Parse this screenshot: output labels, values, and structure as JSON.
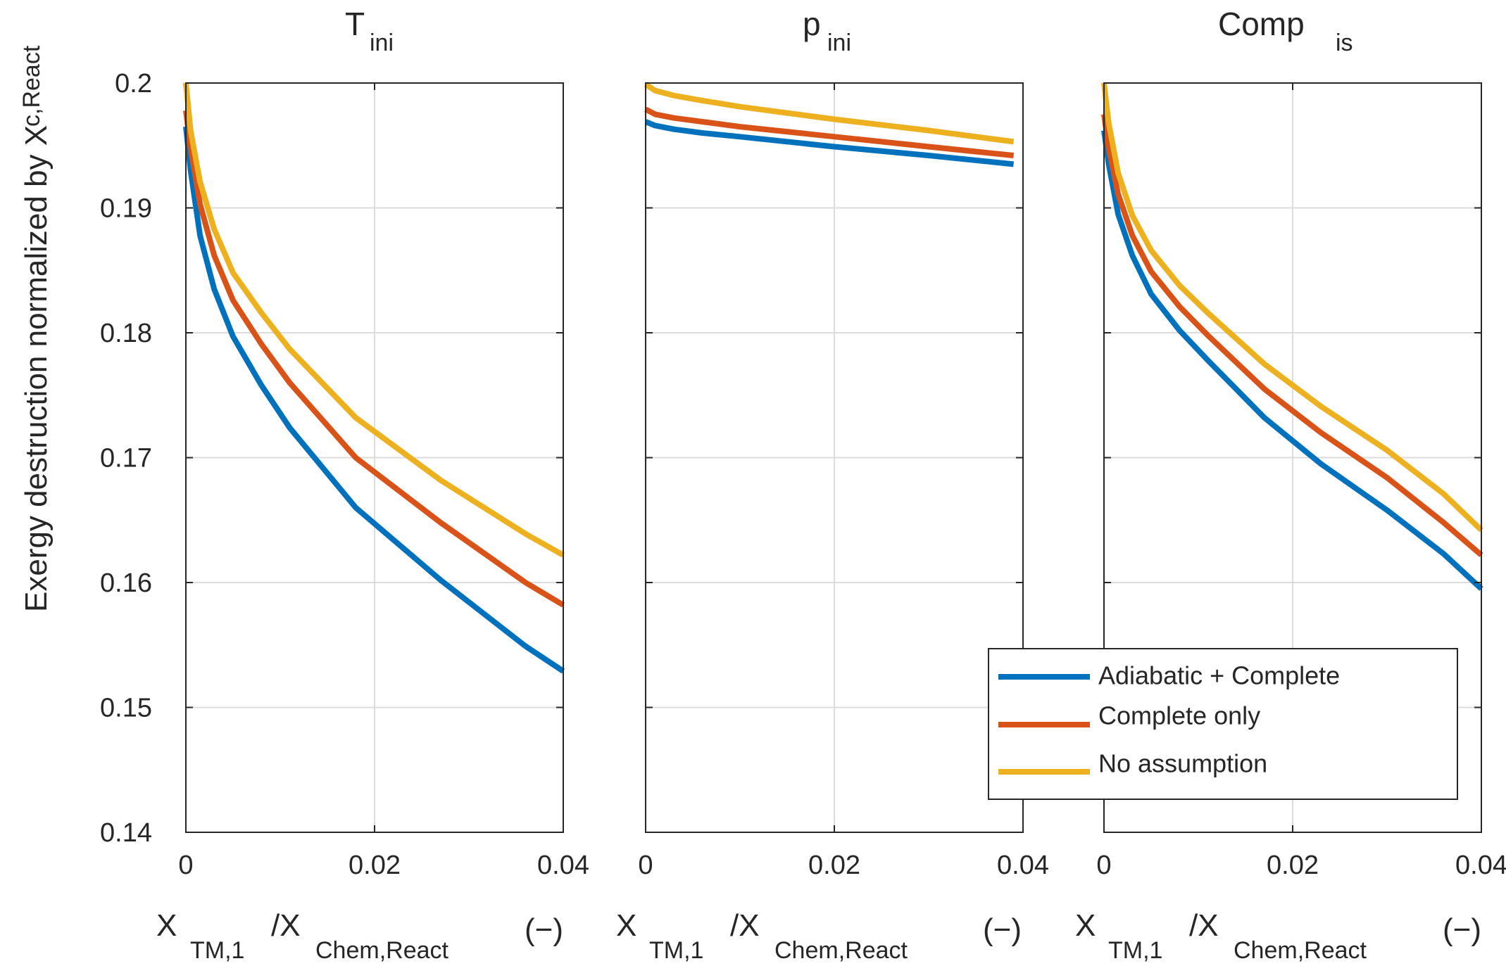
{
  "chart_data": [
    {
      "type": "line",
      "title": "T",
      "title_sub": "ini",
      "ylabel": "Exergy destruction normalized by X",
      "ylabel_sub": "c,React",
      "ylabel_unit": "(−)",
      "xlabel": "X",
      "xlabel_sub1": "TM,1",
      "xlabel_mid": "/X",
      "xlabel_sub2": "Chem,React",
      "xlabel_unit": "(−)",
      "xlim": [
        0,
        0.04
      ],
      "ylim": [
        0.14,
        0.2
      ],
      "xticks": [
        "0",
        "0.02",
        "0.04"
      ],
      "yticks": [
        "0.14",
        "0.15",
        "0.16",
        "0.17",
        "0.18",
        "0.19",
        "0.2"
      ],
      "grid": true,
      "series": [
        {
          "name": "Adiabatic + Complete",
          "color": "#0072BD",
          "x": [
            0,
            0.0005,
            0.0015,
            0.003,
            0.005,
            0.008,
            0.011,
            0.018,
            0.027,
            0.036,
            0.04
          ],
          "y": [
            0.1965,
            0.193,
            0.1878,
            0.1835,
            0.1797,
            0.1758,
            0.1724,
            0.166,
            0.1602,
            0.1549,
            0.1529
          ]
        },
        {
          "name": "Complete only",
          "color": "#D95319",
          "x": [
            0,
            0.0005,
            0.0015,
            0.003,
            0.005,
            0.008,
            0.011,
            0.018,
            0.027,
            0.036,
            0.04
          ],
          "y": [
            0.1978,
            0.1948,
            0.1903,
            0.1862,
            0.1826,
            0.1791,
            0.176,
            0.17,
            0.1648,
            0.16,
            0.1582
          ]
        },
        {
          "name": "No assumption",
          "color": "#EDB120",
          "x": [
            0,
            0.0005,
            0.0015,
            0.003,
            0.005,
            0.008,
            0.011,
            0.018,
            0.027,
            0.036,
            0.04
          ],
          "y": [
            0.2,
            0.1962,
            0.1921,
            0.1883,
            0.1848,
            0.1816,
            0.1787,
            0.1732,
            0.1682,
            0.1639,
            0.1622
          ]
        }
      ]
    },
    {
      "type": "line",
      "title": "p",
      "title_sub": "ini",
      "xlabel": "X",
      "xlabel_sub1": "TM,1",
      "xlabel_mid": "/X",
      "xlabel_sub2": "Chem,React",
      "xlabel_unit": "(−)",
      "xlim": [
        0,
        0.04
      ],
      "ylim": [
        0.14,
        0.2
      ],
      "xticks": [
        "0",
        "0.02",
        "0.04"
      ],
      "grid": true,
      "series": [
        {
          "name": "Adiabatic + Complete",
          "color": "#0072BD",
          "x": [
            0,
            0.001,
            0.003,
            0.006,
            0.01,
            0.02,
            0.03,
            0.039
          ],
          "y": [
            0.1969,
            0.1966,
            0.1963,
            0.196,
            0.1957,
            0.1949,
            0.1942,
            0.1935
          ]
        },
        {
          "name": "Complete only",
          "color": "#D95319",
          "x": [
            0,
            0.001,
            0.003,
            0.006,
            0.01,
            0.02,
            0.03,
            0.039
          ],
          "y": [
            0.1979,
            0.1975,
            0.1972,
            0.1969,
            0.1965,
            0.1957,
            0.1949,
            0.1942
          ]
        },
        {
          "name": "No assumption",
          "color": "#EDB120",
          "x": [
            0,
            0.001,
            0.003,
            0.006,
            0.01,
            0.02,
            0.03,
            0.039
          ],
          "y": [
            0.1999,
            0.1994,
            0.199,
            0.1986,
            0.1981,
            0.1971,
            0.1962,
            0.1953
          ]
        }
      ]
    },
    {
      "type": "line",
      "title": "Comp",
      "title_sub": "is",
      "xlabel": "X",
      "xlabel_sub1": "TM,1",
      "xlabel_mid": "/X",
      "xlabel_sub2": "Chem,React",
      "xlabel_unit": "(−)",
      "xlim": [
        0,
        0.04
      ],
      "ylim": [
        0.14,
        0.2
      ],
      "xticks": [
        "0",
        "0.02",
        "0.04"
      ],
      "grid": true,
      "series": [
        {
          "name": "Adiabatic + Complete",
          "color": "#0072BD",
          "x": [
            0,
            0.0005,
            0.0015,
            0.003,
            0.005,
            0.008,
            0.011,
            0.017,
            0.023,
            0.03,
            0.036,
            0.04
          ],
          "y": [
            0.1962,
            0.1935,
            0.1895,
            0.1862,
            0.1831,
            0.1802,
            0.1778,
            0.1732,
            0.1695,
            0.1658,
            0.1623,
            0.1595
          ]
        },
        {
          "name": "Complete only",
          "color": "#D95319",
          "x": [
            0,
            0.0005,
            0.0015,
            0.003,
            0.005,
            0.008,
            0.011,
            0.017,
            0.023,
            0.03,
            0.036,
            0.04
          ],
          "y": [
            0.1975,
            0.1948,
            0.1911,
            0.1878,
            0.1849,
            0.1821,
            0.1798,
            0.1755,
            0.172,
            0.1684,
            0.1648,
            0.1622
          ]
        },
        {
          "name": "No assumption",
          "color": "#EDB120",
          "x": [
            0,
            0.0005,
            0.0015,
            0.003,
            0.005,
            0.008,
            0.011,
            0.017,
            0.023,
            0.03,
            0.036,
            0.04
          ],
          "y": [
            0.2,
            0.1968,
            0.1928,
            0.1894,
            0.1866,
            0.1838,
            0.1816,
            0.1775,
            0.1741,
            0.1706,
            0.1671,
            0.1642
          ]
        }
      ]
    }
  ],
  "legend": {
    "entries": [
      "Adiabatic + Complete",
      "Complete only",
      "No assumption"
    ],
    "colors": [
      "#0072BD",
      "#D95319",
      "#EDB120"
    ],
    "placement": "bottom-right of middle panel"
  }
}
